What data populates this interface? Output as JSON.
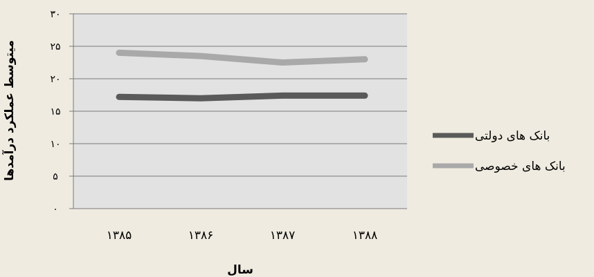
{
  "chart_data": {
    "type": "line",
    "title": "",
    "xlabel": "سال",
    "ylabel": "میتوسط عملکرد درآمدها",
    "categories": [
      "۱۳۸۵",
      "۱۳۸۶",
      "۱۳۸۷",
      "۱۳۸۸"
    ],
    "y_ticks": [
      "۰",
      "۵",
      "۱۰",
      "۱۵",
      "۲۰",
      "۲۵",
      "۳۰"
    ],
    "ylim": [
      0,
      30
    ],
    "grid": true,
    "legend_position": "right",
    "series": [
      {
        "name": "بانک های دولتی",
        "values": [
          17.2,
          17.0,
          17.4,
          17.4
        ],
        "color": "#5a5a5a"
      },
      {
        "name": "بانک های خصوصی",
        "values": [
          24.0,
          23.5,
          22.5,
          23.0
        ],
        "color": "#a9a9a9"
      }
    ]
  },
  "colors": {
    "page_background": "#efebe0",
    "plot_background": "#e2e2e2",
    "gridline": "#7a7a7a",
    "text": "#000000"
  }
}
